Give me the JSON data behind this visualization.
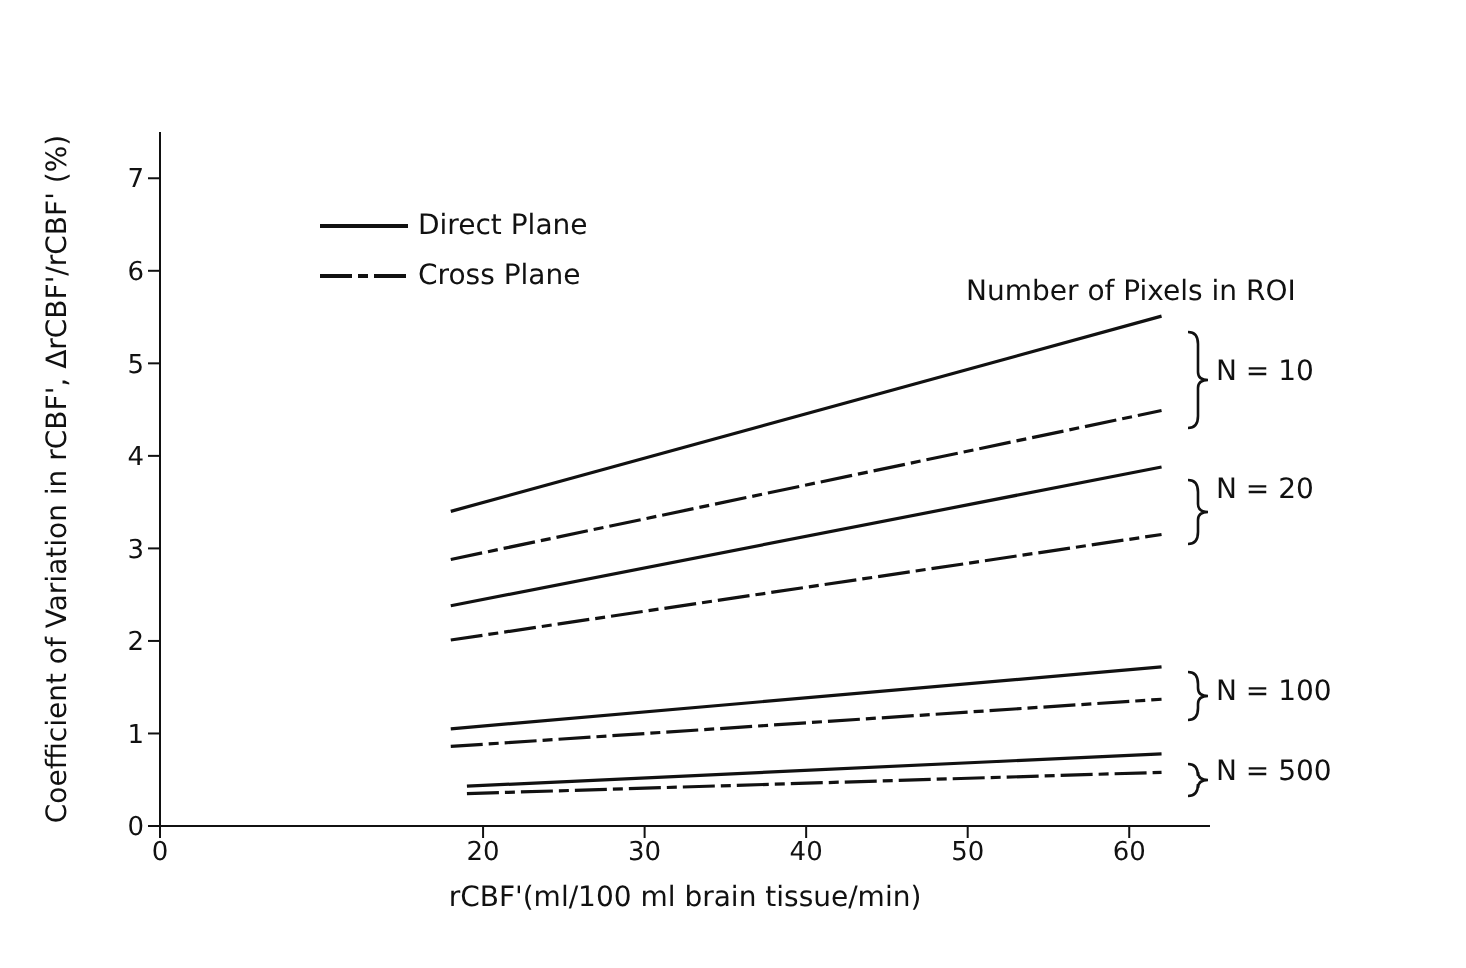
{
  "chart_data": {
    "type": "line",
    "xlabel": "rCBF'(ml/100 ml brain tissue/min)",
    "ylabel": "Coefficient of Variation in rCBF', ΔrCBF'/rCBF' (%)",
    "xlim": [
      0,
      65
    ],
    "xticks": [
      0,
      20,
      30,
      40,
      50,
      60
    ],
    "ylim": [
      0,
      7.5
    ],
    "yticks": [
      0,
      1,
      2,
      3,
      4,
      5,
      6,
      7
    ],
    "grid": false,
    "legend": "top left",
    "marker": "none",
    "annotations": [
      "Number of Pixels in ROI",
      "N = 10",
      "N = 20",
      "N = 100",
      "N = 500"
    ],
    "series": [
      {
        "name": "Direct Plane",
        "color": "#111111",
        "line_style": "solid",
        "x": [
          18,
          62
        ],
        "values": [
          3.4,
          5.51
        ]
      },
      {
        "name": "Cross Plane",
        "color": "#111111",
        "line_style": "dashed",
        "x": [
          18,
          62
        ],
        "values": [
          2.88,
          4.49
        ]
      },
      {
        "color": "#111111",
        "line_style": "solid",
        "x": [
          18,
          62
        ],
        "values": [
          2.38,
          3.88
        ]
      },
      {
        "color": "#111111",
        "line_style": "dashed",
        "x": [
          18,
          62
        ],
        "values": [
          2.01,
          3.15
        ]
      },
      {
        "color": "#111111",
        "line_style": "solid",
        "x": [
          18,
          62
        ],
        "values": [
          1.05,
          1.72
        ]
      },
      {
        "color": "#111111",
        "line_style": "dashed",
        "x": [
          18,
          62
        ],
        "values": [
          0.86,
          1.37
        ]
      },
      {
        "color": "#111111",
        "line_style": "solid",
        "x": [
          19,
          62
        ],
        "values": [
          0.43,
          0.78
        ]
      },
      {
        "color": "#111111",
        "line_style": "dashed",
        "x": [
          19,
          62
        ],
        "values": [
          0.35,
          0.58
        ]
      }
    ]
  }
}
